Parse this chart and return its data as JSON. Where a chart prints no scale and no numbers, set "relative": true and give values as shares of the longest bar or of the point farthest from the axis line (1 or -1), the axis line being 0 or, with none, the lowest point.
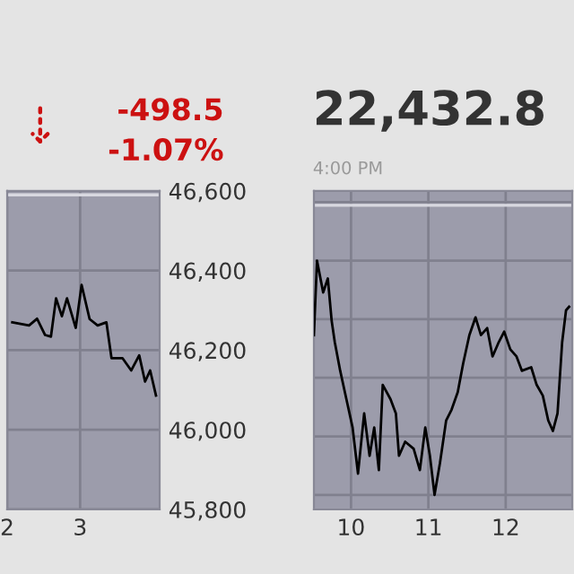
{
  "chart_data": [
    {
      "type": "line",
      "annotations": [
        "-498.5",
        "-1.07%"
      ],
      "x": [
        2.07,
        2.3,
        2.41,
        2.52,
        2.6,
        2.67,
        2.75,
        2.82,
        2.94,
        3.02,
        3.13,
        3.24,
        3.36,
        3.43,
        3.58,
        3.7,
        3.81,
        3.89,
        3.96,
        4.04
      ],
      "series": [
        {
          "color": "#000000",
          "values": [
            46270,
            46262,
            46279,
            46238,
            46234,
            46330,
            46285,
            46330,
            46256,
            46364,
            46278,
            46262,
            46270,
            46180,
            46180,
            46149,
            46187,
            46121,
            46149,
            46086
          ]
        }
      ],
      "xlim": [
        2,
        4.09
      ],
      "xticks": [
        2,
        3
      ],
      "ylim": [
        45800,
        46600
      ],
      "yticks": [
        {
          "value": 45800,
          "label": "45,800"
        },
        {
          "value": 46000,
          "label": "46,000"
        },
        {
          "value": 46200,
          "label": "46,200"
        },
        {
          "value": 46400,
          "label": "46,400"
        },
        {
          "value": 46600,
          "label": "46,600"
        }
      ],
      "ref_lines": [
        {
          "axis": "y",
          "value": 46590,
          "color": "#d8d8e0"
        }
      ],
      "grid": true
    },
    {
      "type": "line",
      "relative": true,
      "annotations": [
        "22,432.8",
        "4:00 PM"
      ],
      "x": [
        9.52,
        9.56,
        9.64,
        9.7,
        9.75,
        9.79,
        9.86,
        9.94,
        10.02,
        10.09,
        10.17,
        10.24,
        10.3,
        10.36,
        10.41,
        10.51,
        10.58,
        10.62,
        10.7,
        10.81,
        10.89,
        10.96,
        11.02,
        11.08,
        11.15,
        11.23,
        11.3,
        11.38,
        11.45,
        11.53,
        11.61,
        11.68,
        11.76,
        11.83,
        11.91,
        11.98,
        12.06,
        12.14,
        12.21,
        12.33,
        12.4,
        12.48,
        12.55,
        12.61,
        12.67,
        12.73,
        12.78,
        12.82
      ],
      "series": [
        {
          "color": "#000000",
          "values": [
            0.682,
            1,
            0.864,
            0.924,
            0.742,
            0.652,
            0.53,
            0.409,
            0.288,
            0.091,
            0.348,
            0.167,
            0.288,
            0.106,
            0.47,
            0.409,
            0.348,
            0.167,
            0.227,
            0.197,
            0.106,
            0.288,
            0.167,
            0,
            0.136,
            0.318,
            0.364,
            0.439,
            0.561,
            0.682,
            0.758,
            0.682,
            0.712,
            0.591,
            0.652,
            0.697,
            0.621,
            0.591,
            0.53,
            0.545,
            0.47,
            0.424,
            0.318,
            0.273,
            0.348,
            0.652,
            0.788,
            0.803
          ]
        }
      ],
      "xlim": [
        9.52,
        12.86
      ],
      "xticks": [
        10,
        11,
        12
      ],
      "ref_lines": [
        {
          "axis": "y",
          "value": 1.236,
          "color": "#d8d8e0"
        }
      ],
      "grid": true
    }
  ]
}
